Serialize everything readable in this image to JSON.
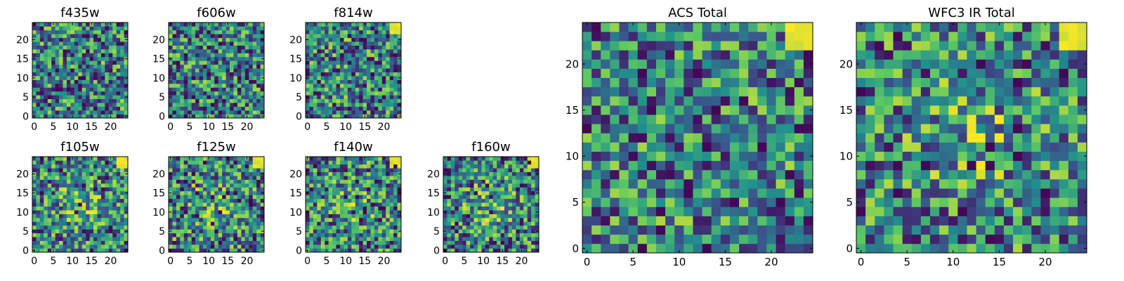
{
  "colormap": [
    "#440154",
    "#3b528b",
    "#21918c",
    "#5ec962",
    "#fde725"
  ],
  "chart_data": [
    {
      "type": "heatmap",
      "title": "f435w",
      "x_ticks": [
        "0",
        "5",
        "10",
        "15",
        "20"
      ],
      "y_ticks": [
        "0",
        "5",
        "10",
        "15",
        "20"
      ],
      "grid_size": 25,
      "xlim": [
        -0.5,
        24.5
      ],
      "ylim": [
        -0.5,
        24.5
      ],
      "bright_corner": false,
      "central_bump": false,
      "seed": 11
    },
    {
      "type": "heatmap",
      "title": "f606w",
      "x_ticks": [
        "0",
        "5",
        "10",
        "15",
        "20"
      ],
      "y_ticks": [
        "0",
        "5",
        "10",
        "15",
        "20"
      ],
      "grid_size": 25,
      "xlim": [
        -0.5,
        24.5
      ],
      "ylim": [
        -0.5,
        24.5
      ],
      "bright_corner": false,
      "central_bump": false,
      "seed": 23
    },
    {
      "type": "heatmap",
      "title": "f814w",
      "x_ticks": [
        "0",
        "5",
        "10",
        "15",
        "20"
      ],
      "y_ticks": [
        "0",
        "5",
        "10",
        "15",
        "20"
      ],
      "grid_size": 25,
      "xlim": [
        -0.5,
        24.5
      ],
      "ylim": [
        -0.5,
        24.5
      ],
      "bright_corner": true,
      "central_bump": false,
      "seed": 37
    },
    {
      "type": "heatmap",
      "title": "f105w",
      "x_ticks": [
        "0",
        "5",
        "10",
        "15",
        "20"
      ],
      "y_ticks": [
        "0",
        "5",
        "10",
        "15",
        "20"
      ],
      "grid_size": 25,
      "xlim": [
        -0.5,
        24.5
      ],
      "ylim": [
        -0.5,
        24.5
      ],
      "bright_corner": true,
      "central_bump": true,
      "seed": 41
    },
    {
      "type": "heatmap",
      "title": "f125w",
      "x_ticks": [
        "0",
        "5",
        "10",
        "15",
        "20"
      ],
      "y_ticks": [
        "0",
        "5",
        "10",
        "15",
        "20"
      ],
      "grid_size": 25,
      "xlim": [
        -0.5,
        24.5
      ],
      "ylim": [
        -0.5,
        24.5
      ],
      "bright_corner": true,
      "central_bump": true,
      "seed": 53
    },
    {
      "type": "heatmap",
      "title": "f140w",
      "x_ticks": [
        "0",
        "5",
        "10",
        "15",
        "20"
      ],
      "y_ticks": [
        "0",
        "5",
        "10",
        "15",
        "20"
      ],
      "grid_size": 25,
      "xlim": [
        -0.5,
        24.5
      ],
      "ylim": [
        -0.5,
        24.5
      ],
      "bright_corner": true,
      "central_bump": true,
      "seed": 67
    },
    {
      "type": "heatmap",
      "title": "f160w",
      "x_ticks": [
        "0",
        "5",
        "10",
        "15",
        "20"
      ],
      "y_ticks": [
        "0",
        "5",
        "10",
        "15",
        "20"
      ],
      "grid_size": 25,
      "xlim": [
        -0.5,
        24.5
      ],
      "ylim": [
        -0.5,
        24.5
      ],
      "bright_corner": true,
      "central_bump": true,
      "seed": 79
    },
    {
      "type": "heatmap",
      "title": "ACS Total",
      "x_ticks": [
        "0",
        "5",
        "10",
        "15",
        "20"
      ],
      "y_ticks": [
        "0",
        "5",
        "10",
        "15",
        "20"
      ],
      "grid_size": 25,
      "xlim": [
        -0.5,
        24.5
      ],
      "ylim": [
        -0.5,
        24.5
      ],
      "bright_corner": true,
      "central_bump": false,
      "seed": 97
    },
    {
      "type": "heatmap",
      "title": "WFC3 IR Total",
      "x_ticks": [
        "0",
        "5",
        "10",
        "15",
        "20"
      ],
      "y_ticks": [
        "0",
        "5",
        "10",
        "15",
        "20"
      ],
      "grid_size": 25,
      "xlim": [
        -0.5,
        24.5
      ],
      "ylim": [
        -0.5,
        24.5
      ],
      "bright_corner": true,
      "central_bump": true,
      "seed": 113
    }
  ]
}
